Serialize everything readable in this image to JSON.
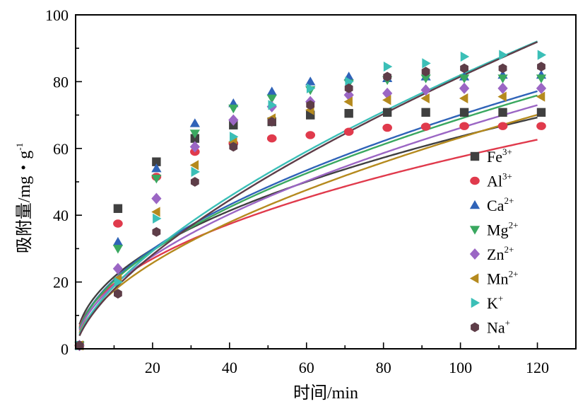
{
  "chart_data": {
    "type": "scatter",
    "xlabel": "时间/min",
    "ylabel_main": "吸附量/mg・g",
    "ylabel_sup": "-1",
    "xlim": [
      0,
      130
    ],
    "ylim": [
      0,
      100
    ],
    "xticks": [
      20,
      40,
      60,
      80,
      100,
      120
    ],
    "yticks": [
      0,
      20,
      40,
      60,
      80,
      100
    ],
    "legend_position": "right-middle",
    "x": [
      1,
      11,
      21,
      31,
      41,
      51,
      61,
      71,
      81,
      91,
      101,
      111,
      121
    ],
    "series": [
      {
        "name": "Fe",
        "sup": "3+",
        "marker": "square",
        "color": "#404040",
        "values": [
          1,
          42,
          56,
          63,
          67,
          68,
          70,
          70.5,
          70.8,
          70.8,
          70.8,
          70.8,
          70.8
        ],
        "fit": [
          7.3,
          0.47
        ]
      },
      {
        "name": "Al",
        "sup": "3+",
        "marker": "circle",
        "color": "#e03a4c",
        "values": [
          1,
          37.5,
          51.5,
          59,
          61.5,
          63,
          64,
          65,
          66.2,
          66.5,
          66.7,
          66.7,
          66.7
        ],
        "fit": [
          6.6,
          0.47
        ]
      },
      {
        "name": "Ca",
        "sup": "2+",
        "marker": "triangle-up",
        "color": "#2f63b8",
        "values": [
          1,
          32,
          54,
          67.5,
          73.5,
          77,
          80,
          81.5,
          81,
          81.5,
          81.5,
          82,
          82
        ],
        "fit": [
          6.1,
          0.53
        ]
      },
      {
        "name": "Mg",
        "sup": "2+",
        "marker": "triangle-down",
        "color": "#3aa860",
        "values": [
          1,
          30,
          51,
          64.5,
          72,
          75,
          77.5,
          79.5,
          80.5,
          81,
          81,
          81,
          81
        ],
        "fit": [
          6.0,
          0.53
        ]
      },
      {
        "name": "Zn",
        "sup": "2+",
        "marker": "diamond",
        "color": "#9b66c4",
        "values": [
          1,
          24,
          45,
          60.5,
          68.5,
          72.5,
          74,
          76,
          76.5,
          77.5,
          78,
          78,
          78
        ],
        "fit": [
          5.5,
          0.54
        ]
      },
      {
        "name": "Mn",
        "sup": "2+",
        "marker": "triangle-left",
        "color": "#b58a1e",
        "values": [
          1,
          21,
          41,
          55,
          62,
          69,
          71.5,
          74,
          74.5,
          75,
          75,
          75.5,
          75.5
        ],
        "fit": [
          4.8,
          0.56
        ]
      },
      {
        "name": "K",
        "sup": "+",
        "marker": "triangle-right",
        "color": "#3bbfb7",
        "values": [
          1,
          20,
          39,
          53,
          63.5,
          73,
          78,
          80,
          84.5,
          85.5,
          87.5,
          88,
          88
        ],
        "fit": [
          4.3,
          0.64
        ]
      },
      {
        "name": "Na",
        "sup": "+",
        "marker": "hexagon",
        "color": "#5e3d48",
        "values": [
          1,
          16.5,
          35,
          50,
          60.5,
          68,
          73,
          78,
          81.5,
          83,
          84,
          84,
          84.5
        ],
        "fit": [
          3.9,
          0.66
        ]
      }
    ]
  }
}
